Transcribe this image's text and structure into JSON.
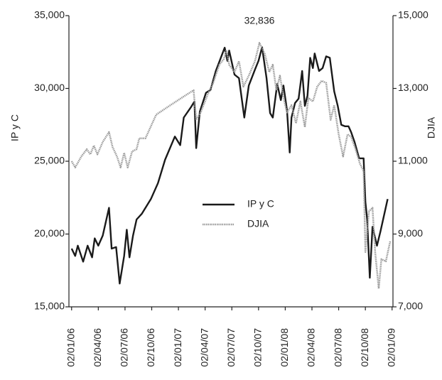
{
  "chart_data": {
    "type": "line",
    "y_label": "IP y C",
    "y2_label": "DJIA",
    "annotation": "32,836",
    "xlim": [
      -0.3,
      36.1
    ],
    "xticks": [
      {
        "value": 0,
        "label": "02/01/06"
      },
      {
        "value": 3,
        "label": "02/04/06"
      },
      {
        "value": 6,
        "label": "02/07/06"
      },
      {
        "value": 9,
        "label": "02/10/06"
      },
      {
        "value": 12,
        "label": "02/01/07"
      },
      {
        "value": 15,
        "label": "02/04/07"
      },
      {
        "value": 18,
        "label": "02/07/07"
      },
      {
        "value": 21,
        "label": "02/10/07"
      },
      {
        "value": 24,
        "label": "02/01/08"
      },
      {
        "value": 27,
        "label": "02/04/08"
      },
      {
        "value": 30,
        "label": "02/07/08"
      },
      {
        "value": 33,
        "label": "02/10/08"
      },
      {
        "value": 36,
        "label": "02/01/09"
      }
    ],
    "ylim": [
      15000,
      35000
    ],
    "yticks": [
      {
        "value": 15000,
        "label": "15,000"
      },
      {
        "value": 20000,
        "label": "20,000"
      },
      {
        "value": 25000,
        "label": "25,000"
      },
      {
        "value": 30000,
        "label": "30,000"
      },
      {
        "value": 35000,
        "label": "35,000"
      }
    ],
    "y2lim": [
      7000,
      15000
    ],
    "y2ticks": [
      {
        "value": 7000,
        "label": "7,000"
      },
      {
        "value": 9000,
        "label": "9,000"
      },
      {
        "value": 11000,
        "label": "11,000"
      },
      {
        "value": 13000,
        "label": "13,000"
      },
      {
        "value": 15000,
        "label": "15,000"
      }
    ],
    "series": [
      {
        "name": "IP y C",
        "color": "#1a1a1a",
        "x": [
          0,
          0.4,
          0.7,
          1.3,
          1.8,
          2.3,
          2.6,
          3.0,
          3.5,
          4.2,
          4.5,
          5.0,
          5.4,
          5.9,
          6.2,
          6.5,
          6.9,
          7.3,
          7.9,
          8.9,
          9.7,
          10.5,
          11.6,
          12.2,
          12.6,
          13.4,
          13.8,
          14.0,
          14.4,
          15.1,
          15.6,
          16.2,
          17.2,
          17.5,
          17.7,
          18.3,
          18.8,
          19.4,
          19.9,
          20.6,
          21.0,
          21.4,
          21.9,
          22.3,
          22.6,
          23.1,
          23.5,
          23.8,
          24.2,
          24.5,
          24.7,
          25.1,
          25.5,
          25.9,
          26.2,
          26.5,
          26.8,
          27.1,
          27.3,
          27.8,
          28.2,
          28.6,
          29.0,
          29.5,
          29.9,
          30.3,
          30.7,
          31.1,
          31.4,
          31.8,
          32.3,
          32.8,
          33.0,
          33.2,
          33.5,
          33.8,
          34.3,
          34.7,
          35.5
        ],
        "values": [
          19000,
          18500,
          19200,
          18100,
          19200,
          18400,
          19700,
          19200,
          19900,
          21800,
          19000,
          19100,
          16600,
          18500,
          20300,
          18400,
          19900,
          21000,
          21400,
          22400,
          23500,
          25100,
          26700,
          26100,
          28000,
          28700,
          29100,
          25900,
          28400,
          29700,
          29900,
          31200,
          32800,
          31900,
          32600,
          30950,
          30700,
          28000,
          30200,
          31300,
          31900,
          32836,
          30700,
          28300,
          28000,
          30300,
          29200,
          30200,
          28500,
          25600,
          28000,
          29000,
          29300,
          31200,
          28800,
          29500,
          32100,
          31400,
          32400,
          31200,
          31400,
          32200,
          32100,
          29800,
          28800,
          27500,
          27400,
          27400,
          27000,
          26300,
          25200,
          25200,
          22200,
          21000,
          17000,
          20500,
          19200,
          20200,
          22400
        ]
      },
      {
        "name": "DJIA",
        "color": "#9a9a9a",
        "axis": "y2",
        "x": [
          0,
          0.4,
          1.1,
          1.7,
          2.1,
          2.5,
          2.9,
          3.5,
          4.2,
          4.6,
          5.1,
          5.5,
          5.9,
          6.3,
          6.8,
          7.3,
          7.6,
          8.3,
          9.5,
          11.1,
          12.6,
          13.7,
          14.0,
          14.5,
          15.3,
          15.9,
          16.6,
          17.1,
          17.4,
          17.7,
          18.3,
          18.8,
          19.3,
          19.9,
          20.6,
          21.1,
          21.7,
          22.2,
          22.6,
          23.0,
          23.4,
          23.9,
          24.2,
          24.7,
          25.2,
          25.7,
          26.2,
          26.6,
          27.1,
          27.6,
          28.1,
          28.6,
          29.1,
          29.5,
          30.0,
          30.5,
          31.0,
          31.4,
          31.9,
          32.4,
          32.8,
          33.0,
          33.4,
          33.8,
          34.1,
          34.5,
          34.8,
          35.3,
          35.8
        ],
        "values": [
          11000,
          10830,
          11130,
          11330,
          11190,
          11430,
          11190,
          11530,
          11800,
          11390,
          11130,
          10830,
          11230,
          10830,
          11270,
          11330,
          11630,
          11630,
          12280,
          12540,
          12780,
          12950,
          12140,
          12340,
          12840,
          13150,
          13650,
          13810,
          14050,
          13650,
          13450,
          13750,
          13050,
          13350,
          13750,
          14250,
          13950,
          13450,
          13650,
          12950,
          13350,
          12640,
          12340,
          12540,
          12040,
          12640,
          11940,
          12740,
          12640,
          13050,
          13210,
          13150,
          12140,
          12540,
          11740,
          11130,
          11740,
          11670,
          11330,
          10930,
          10730,
          8510,
          9620,
          9720,
          8510,
          7500,
          8310,
          8250,
          8810
        ]
      }
    ]
  }
}
